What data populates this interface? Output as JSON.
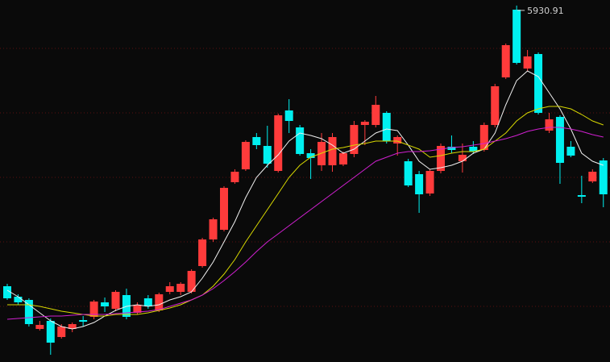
{
  "chart_data": {
    "type": "candlestick",
    "open": [
      2450,
      2320,
      2280,
      1920,
      2020,
      1820,
      1920,
      2030,
      2070,
      2250,
      2170,
      2340,
      2120,
      2300,
      2150,
      2380,
      2380,
      2380,
      2700,
      3030,
      3150,
      3740,
      3900,
      4300,
      4190,
      3880,
      4630,
      4420,
      4100,
      3950,
      3950,
      3960,
      4090,
      4450,
      4450,
      4600,
      4220,
      4000,
      3840,
      3600,
      3880,
      4180,
      4000,
      4180,
      4140,
      4450,
      5040,
      5880,
      5150,
      5330,
      4380,
      4550,
      4180,
      3580,
      3750,
      4010
    ],
    "high": [
      2480,
      2350,
      2300,
      2020,
      2050,
      1980,
      2000,
      2080,
      2280,
      2310,
      2400,
      2420,
      2250,
      2340,
      2370,
      2500,
      2500,
      2660,
      3050,
      3300,
      3690,
      3900,
      4260,
      4350,
      4440,
      4590,
      4770,
      4450,
      4150,
      4350,
      4350,
      4120,
      4500,
      4510,
      4810,
      4620,
      4320,
      4030,
      3880,
      3900,
      4220,
      4320,
      4220,
      4250,
      4480,
      4960,
      5460,
      5930.91,
      5380,
      5350,
      4600,
      4570,
      4250,
      3820,
      3900,
      4040
    ],
    "low": [
      2280,
      2220,
      1950,
      1900,
      1600,
      1800,
      1880,
      1950,
      2040,
      2130,
      2140,
      2040,
      2100,
      2170,
      2130,
      2350,
      2340,
      2360,
      2680,
      3000,
      3130,
      3720,
      3880,
      4150,
      3920,
      3860,
      4350,
      4070,
      3780,
      3880,
      3870,
      3940,
      4050,
      4200,
      4420,
      4220,
      4070,
      3680,
      3360,
      3570,
      3850,
      4100,
      3860,
      4090,
      4120,
      4420,
      5020,
      5200,
      5120,
      4580,
      4350,
      3720,
      4050,
      3480,
      3730,
      3430
    ],
    "close": [
      2300,
      2250,
      1980,
      1970,
      1750,
      1950,
      1980,
      2010,
      2260,
      2200,
      2380,
      2070,
      2220,
      2200,
      2350,
      2450,
      2480,
      2640,
      3030,
      3280,
      3670,
      3870,
      4240,
      4200,
      3970,
      4570,
      4500,
      4090,
      4040,
      4240,
      4300,
      4100,
      4450,
      4490,
      4700,
      4250,
      4300,
      3700,
      3590,
      3880,
      4190,
      4140,
      4080,
      4120,
      4450,
      4930,
      5440,
      5220,
      5300,
      4600,
      4520,
      3980,
      4070,
      3560,
      3870,
      3590
    ],
    "up_color": "#ff3b3b",
    "down_color": "#00f0f0",
    "lines": [
      {
        "color": "#f0f0f0",
        "values": [
          2400,
          2320,
          2220,
          2120,
          2020,
          1950,
          1920,
          1950,
          2000,
          2080,
          2150,
          2200,
          2220,
          2200,
          2220,
          2280,
          2320,
          2380,
          2550,
          2750,
          3000,
          3250,
          3550,
          3800,
          3950,
          4080,
          4250,
          4350,
          4320,
          4280,
          4200,
          4100,
          4150,
          4250,
          4350,
          4400,
          4380,
          4200,
          4000,
          3900,
          3920,
          3950,
          4000,
          4100,
          4150,
          4350,
          4700,
          5000,
          5120,
          5050,
          4850,
          4650,
          4400,
          4100,
          4000,
          3950
        ]
      },
      {
        "color": "#d8d800",
        "values": [
          2220,
          2220,
          2220,
          2200,
          2170,
          2140,
          2120,
          2100,
          2080,
          2080,
          2100,
          2100,
          2100,
          2120,
          2150,
          2180,
          2220,
          2280,
          2340,
          2450,
          2600,
          2780,
          3000,
          3200,
          3400,
          3600,
          3800,
          3950,
          4050,
          4100,
          4150,
          4170,
          4200,
          4220,
          4250,
          4250,
          4250,
          4200,
          4150,
          4050,
          4070,
          4100,
          4120,
          4120,
          4150,
          4250,
          4350,
          4500,
          4600,
          4650,
          4680,
          4680,
          4650,
          4580,
          4500,
          4450
        ]
      },
      {
        "color": "#d020d0",
        "values": [
          2040,
          2050,
          2060,
          2070,
          2080,
          2080,
          2090,
          2100,
          2100,
          2100,
          2110,
          2120,
          2130,
          2140,
          2160,
          2200,
          2240,
          2280,
          2340,
          2420,
          2520,
          2630,
          2750,
          2880,
          3000,
          3100,
          3200,
          3300,
          3400,
          3500,
          3600,
          3700,
          3800,
          3900,
          4000,
          4050,
          4100,
          4120,
          4120,
          4130,
          4150,
          4170,
          4180,
          4200,
          4220,
          4250,
          4280,
          4320,
          4370,
          4400,
          4420,
          4420,
          4400,
          4370,
          4330,
          4300
        ]
      }
    ],
    "ylim": [
      1510,
      6000
    ]
  }
}
